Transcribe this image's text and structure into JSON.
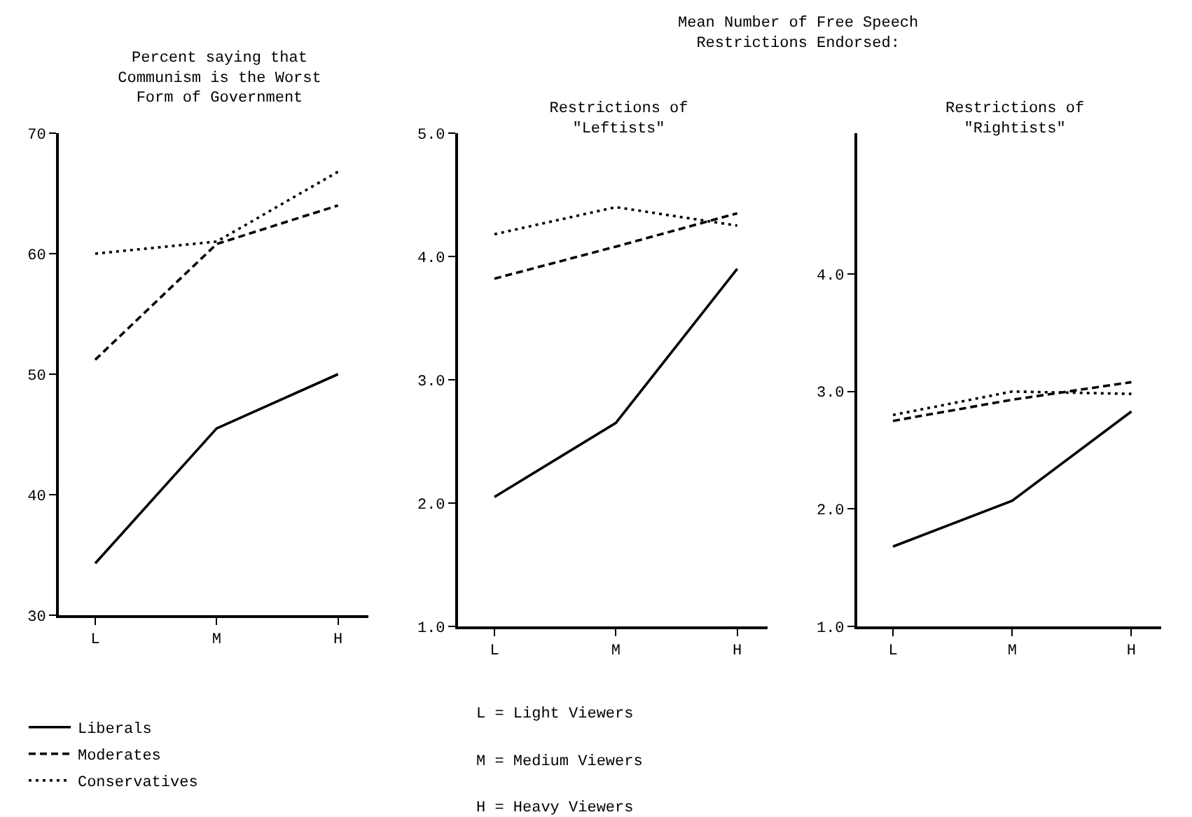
{
  "chart_data": [
    {
      "type": "line",
      "title": "Percent saying that Communism is the Worst Form of Government",
      "categories": [
        "L",
        "M",
        "H"
      ],
      "ylim": [
        30,
        70
      ],
      "yticks": [
        30,
        40,
        50,
        60,
        70
      ],
      "grid": false,
      "legend": "bottom",
      "marker": "none",
      "series": [
        {
          "name": "Liberals",
          "color": "#000000",
          "line_style": "solid",
          "values": [
            34.3,
            45.5,
            50
          ]
        },
        {
          "name": "Moderates",
          "color": "#000000",
          "line_style": "dashed",
          "values": [
            51.2,
            60.8,
            64
          ]
        },
        {
          "name": "Conservatives",
          "color": "#000000",
          "line_style": "dotted",
          "values": [
            60,
            61,
            66.8
          ]
        }
      ]
    },
    {
      "type": "line",
      "subtitle": "Mean Number of Free Speech Restrictions Endorsed:",
      "title": "Restrictions of \"Leftists\"",
      "categories": [
        "L",
        "M",
        "H"
      ],
      "ylim": [
        1,
        5
      ],
      "yticks": [
        {
          "value": 1,
          "label": "1.0"
        },
        {
          "value": 2,
          "label": "2.0"
        },
        {
          "value": 3,
          "label": "3.0"
        },
        {
          "value": 4,
          "label": "4.0"
        },
        {
          "value": 5,
          "label": "5.0"
        }
      ],
      "grid": false,
      "marker": "none",
      "annotations": [
        "L = Light Viewers",
        "M = Medium Viewers",
        "H = Heavy Viewers"
      ],
      "series": [
        {
          "color": "#000000",
          "line_style": "solid",
          "values": [
            2.05,
            2.65,
            3.9
          ]
        },
        {
          "color": "#000000",
          "line_style": "dashed",
          "values": [
            3.82,
            4.08,
            4.35
          ]
        },
        {
          "color": "#000000",
          "line_style": "dotted",
          "values": [
            4.18,
            4.4,
            4.25
          ]
        }
      ]
    },
    {
      "type": "line",
      "title": "Restrictions of \"Rightists\"",
      "categories": [
        "L",
        "M",
        "H"
      ],
      "ylim": [
        1,
        5.2
      ],
      "yticks": [
        {
          "value": 1,
          "label": "1.0"
        },
        {
          "value": 2,
          "label": "2.0"
        },
        {
          "value": 3,
          "label": "3.0"
        },
        {
          "value": 4,
          "label": "4.0"
        }
      ],
      "grid": false,
      "marker": "none",
      "series": [
        {
          "color": "#000000",
          "line_style": "solid",
          "values": [
            1.68,
            2.07,
            2.83
          ]
        },
        {
          "color": "#000000",
          "line_style": "dashed",
          "values": [
            2.75,
            2.93,
            3.08
          ]
        },
        {
          "color": "#000000",
          "line_style": "dotted",
          "values": [
            2.8,
            3.0,
            2.98
          ]
        }
      ]
    }
  ]
}
